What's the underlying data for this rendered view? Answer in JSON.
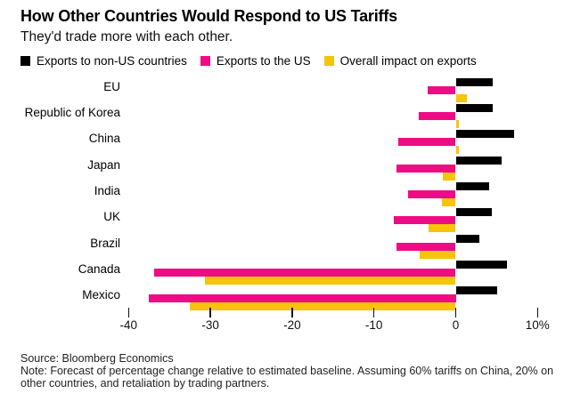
{
  "header": {
    "title": "How Other Countries Would Respond to US Tariffs",
    "subtitle": "They'd trade more with each other."
  },
  "chart_data": {
    "type": "bar",
    "orientation": "horizontal",
    "title": "How Other Countries Would Respond to US Tariffs",
    "subtitle": "They'd trade more with each other.",
    "categories": [
      "EU",
      "Republic of Korea",
      "China",
      "Japan",
      "India",
      "UK",
      "Brazil",
      "Canada",
      "Mexico"
    ],
    "series": [
      {
        "name": "Exports to non-US countries",
        "color": "#000000",
        "values": [
          4.5,
          4.5,
          7.1,
          5.6,
          4.1,
          4.4,
          2.9,
          6.3,
          5.1
        ]
      },
      {
        "name": "Exports to the US",
        "color": "#EE0C84",
        "values": [
          -3.4,
          -4.5,
          -7.0,
          -7.2,
          -5.8,
          -7.6,
          -7.2,
          -36.9,
          -37.5
        ]
      },
      {
        "name": "Overall impact on exports",
        "color": "#F6C40A",
        "values": [
          1.4,
          0.3,
          0.3,
          -1.6,
          -1.7,
          -3.3,
          -4.4,
          -30.7,
          -32.5
        ]
      }
    ],
    "unit": "percent",
    "xlim": [
      -40,
      13
    ],
    "xticks": [
      -40,
      -30,
      -20,
      -10,
      0,
      10
    ],
    "xtick_labels": [
      "-40",
      "-30",
      "-20",
      "-10",
      "0",
      "10%"
    ],
    "grid": false,
    "legend_position": "top"
  },
  "footer": {
    "source": "Source: Bloomberg Economics",
    "note": "Note: Forecast of percentage change relative to estimated baseline. Assuming 60% tariffs on China, 20% on other countries, and retaliation by trading partners."
  }
}
